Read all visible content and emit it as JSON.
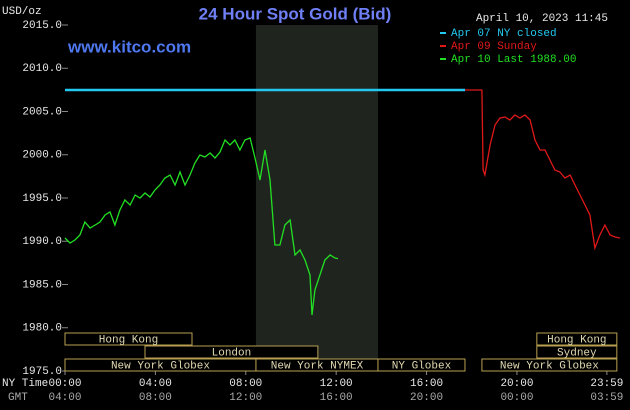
{
  "chart_data": {
    "type": "line",
    "title": "24 Hour Spot Gold (Bid)",
    "source": "www.kitco.com",
    "timestamp": "April 10, 2023 11:45",
    "y_label": "USD/oz",
    "x_label": "NY Time",
    "x2_label": "GMT",
    "xlim": [
      0,
      24.56
    ],
    "ylim": [
      1975,
      2015
    ],
    "yticks": [
      {
        "value": 1975,
        "label": "1975.0"
      },
      {
        "value": 1980,
        "label": "1980.0"
      },
      {
        "value": 1985,
        "label": "1985.0"
      },
      {
        "value": 1990,
        "label": "1990.0"
      },
      {
        "value": 1995,
        "label": "1995.0"
      },
      {
        "value": 2000,
        "label": "2000.0"
      },
      {
        "value": 2005,
        "label": "2005.0"
      },
      {
        "value": 2010,
        "label": "2010.0"
      },
      {
        "value": 2015,
        "label": "2015.0"
      }
    ],
    "xticks": [
      {
        "value": 0,
        "label": "00:00"
      },
      {
        "value": 4,
        "label": "04:00"
      },
      {
        "value": 8,
        "label": "08:00"
      },
      {
        "value": 12,
        "label": "12:00"
      },
      {
        "value": 16,
        "label": "16:00"
      },
      {
        "value": 20,
        "label": "20:00"
      },
      {
        "value": 23.98,
        "label": "23:59"
      }
    ],
    "x2_tick_labels": [
      "04:00",
      "08:00",
      "12:00",
      "16:00",
      "20:00",
      "00:00",
      "03:59"
    ],
    "highlight_x": [
      8.45,
      13.85
    ],
    "series": [
      {
        "name": "Apr 07 NY closed",
        "color": "#22c8f0",
        "x": [
          0,
          17.7
        ],
        "values": [
          2007.49,
          2007.49
        ]
      },
      {
        "name": "Apr 09 Sunday",
        "color": "#e01818",
        "x": [
          17.7,
          18.45,
          18.5,
          18.58,
          18.81,
          19.03,
          19.25,
          19.47,
          19.69,
          19.91,
          20.13,
          20.35,
          20.58,
          20.8,
          21.02,
          21.24,
          21.46,
          21.68,
          21.9,
          22.12,
          22.35,
          22.57,
          22.79,
          23.01,
          23.23,
          23.45,
          23.67,
          23.89,
          24.12,
          24.34,
          24.56
        ],
        "values": [
          2007.49,
          2007.49,
          1998.24,
          1997.66,
          2001.13,
          2003.44,
          2004.25,
          2004.36,
          2004.02,
          2004.6,
          2004.25,
          2004.6,
          2004.02,
          2001.71,
          2000.55,
          2000.55,
          1999.39,
          1998.24,
          1998.01,
          1997.31,
          1997.66,
          1996.5,
          1995.35,
          1994.19,
          1993.03,
          1989.22,
          1990.72,
          1991.88,
          1990.72,
          1990.49,
          1990.38
        ]
      },
      {
        "name": "Apr 10 Last 1988.00",
        "color": "#22e022",
        "x": [
          0,
          0.22,
          0.44,
          0.66,
          0.88,
          1.11,
          1.33,
          1.55,
          1.77,
          1.99,
          2.21,
          2.43,
          2.65,
          2.88,
          3.1,
          3.32,
          3.54,
          3.76,
          3.98,
          4.2,
          4.42,
          4.65,
          4.87,
          5.09,
          5.31,
          5.53,
          5.75,
          5.97,
          6.19,
          6.42,
          6.64,
          6.86,
          7.08,
          7.3,
          7.52,
          7.74,
          7.96,
          8.19,
          8.41,
          8.63,
          8.85,
          9.07,
          9.29,
          9.51,
          9.73,
          9.96,
          10.18,
          10.4,
          10.62,
          10.84,
          10.93,
          11.06,
          11.28,
          11.5,
          11.73,
          11.95,
          12.08
        ],
        "values": [
          1990.38,
          1989.8,
          1990.14,
          1990.72,
          1992.23,
          1991.53,
          1991.88,
          1992.23,
          1993.03,
          1993.38,
          1991.88,
          1993.61,
          1994.77,
          1994.19,
          1995.35,
          1995.0,
          1995.58,
          1995.12,
          1995.92,
          1996.5,
          1997.31,
          1997.66,
          1996.5,
          1998.01,
          1996.5,
          1997.66,
          1999.05,
          1999.97,
          1999.74,
          2000.2,
          1999.62,
          2000.32,
          2001.71,
          2001.13,
          2001.71,
          2000.55,
          2001.71,
          2001.94,
          1999.62,
          1997.08,
          2000.55,
          1997.08,
          1989.57,
          1989.57,
          1991.88,
          1992.46,
          1988.41,
          1988.99,
          1987.83,
          1986.1,
          1981.47,
          1984.36,
          1986.1,
          1987.83,
          1988.41,
          1988.06,
          1988.0
        ]
      }
    ],
    "sessions": [
      {
        "label": "Hong Kong",
        "start": 0,
        "end": 5.62,
        "row": 0
      },
      {
        "label": "Hong Kong",
        "start": 20.88,
        "end": 24.42,
        "row": 0
      },
      {
        "label": "London",
        "start": 3.54,
        "end": 11.19,
        "row": 1
      },
      {
        "label": "Sydney",
        "start": 20.88,
        "end": 24.42,
        "row": 1
      },
      {
        "label": "New York Globex",
        "start": 0,
        "end": 8.45,
        "row": 2
      },
      {
        "label": "New York NYMEX",
        "start": 8.45,
        "end": 13.85,
        "row": 2
      },
      {
        "label": "NY Globex",
        "start": 13.85,
        "end": 17.7,
        "row": 2
      },
      {
        "label": "New York Globex",
        "start": 18.45,
        "end": 24.42,
        "row": 2
      }
    ]
  }
}
